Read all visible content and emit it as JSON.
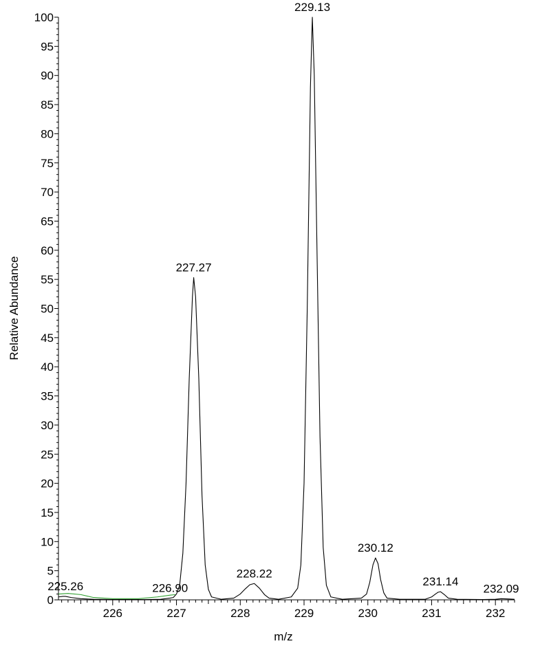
{
  "chart_data": {
    "type": "line",
    "xlabel": "m/z",
    "ylabel": "Relative Abundance",
    "xlim": [
      225.15,
      232.3
    ],
    "ylim": [
      0,
      100
    ],
    "x_ticks": [
      226,
      227,
      228,
      229,
      230,
      231,
      232
    ],
    "y_ticks": [
      0,
      5,
      10,
      15,
      20,
      25,
      30,
      35,
      40,
      45,
      50,
      55,
      60,
      65,
      70,
      75,
      80,
      85,
      90,
      95,
      100
    ],
    "grid": false,
    "colors": {
      "spectrum": "#000000",
      "baseline_trace": "#2e9e2e"
    },
    "peaks": [
      {
        "label": "225.26",
        "mz": 225.26,
        "abundance": 0.6,
        "width": 0.05
      },
      {
        "label": "226.90",
        "mz": 226.9,
        "abundance": 0.3,
        "width": 0.05
      },
      {
        "label": "227.27",
        "mz": 227.27,
        "abundance": 55.3,
        "width": 0.085
      },
      {
        "label": "228.22",
        "mz": 228.22,
        "abundance": 2.8,
        "width": 0.1
      },
      {
        "label": "229.13",
        "mz": 229.13,
        "abundance": 100,
        "width": 0.085
      },
      {
        "label": "230.12",
        "mz": 230.12,
        "abundance": 7.2,
        "width": 0.07
      },
      {
        "label": "231.14",
        "mz": 231.14,
        "abundance": 1.4,
        "width": 0.07
      },
      {
        "label": "232.09",
        "mz": 232.09,
        "abundance": 0.2,
        "width": 0.07
      }
    ],
    "series": [
      {
        "color": "#000000",
        "points": [
          [
            225.15,
            0.5
          ],
          [
            225.22,
            0.6
          ],
          [
            225.26,
            0.6
          ],
          [
            225.35,
            0.4
          ],
          [
            225.5,
            0.2
          ],
          [
            225.7,
            0.1
          ],
          [
            226.0,
            0.05
          ],
          [
            226.5,
            0.05
          ],
          [
            226.75,
            0.1
          ],
          [
            226.9,
            0.3
          ],
          [
            226.95,
            0.4
          ],
          [
            227.0,
            1.0
          ],
          [
            227.05,
            2.5
          ],
          [
            227.1,
            8.0
          ],
          [
            227.15,
            20.0
          ],
          [
            227.2,
            38.0
          ],
          [
            227.25,
            52.0
          ],
          [
            227.27,
            55.3
          ],
          [
            227.3,
            52.0
          ],
          [
            227.35,
            38.0
          ],
          [
            227.4,
            18.0
          ],
          [
            227.45,
            6.0
          ],
          [
            227.5,
            1.8
          ],
          [
            227.55,
            0.5
          ],
          [
            227.7,
            0.1
          ],
          [
            227.9,
            0.3
          ],
          [
            228.0,
            1.0
          ],
          [
            228.08,
            1.9
          ],
          [
            228.15,
            2.6
          ],
          [
            228.22,
            2.8
          ],
          [
            228.3,
            2.0
          ],
          [
            228.38,
            0.9
          ],
          [
            228.45,
            0.3
          ],
          [
            228.6,
            0.1
          ],
          [
            228.8,
            0.5
          ],
          [
            228.9,
            2.0
          ],
          [
            228.95,
            6.0
          ],
          [
            229.0,
            20.0
          ],
          [
            229.05,
            50.0
          ],
          [
            229.1,
            88.0
          ],
          [
            229.13,
            100.0
          ],
          [
            229.16,
            90.0
          ],
          [
            229.2,
            62.0
          ],
          [
            229.25,
            28.0
          ],
          [
            229.3,
            9.0
          ],
          [
            229.35,
            2.5
          ],
          [
            229.42,
            0.5
          ],
          [
            229.6,
            0.1
          ],
          [
            229.9,
            0.3
          ],
          [
            229.98,
            1.0
          ],
          [
            230.03,
            3.0
          ],
          [
            230.08,
            6.0
          ],
          [
            230.12,
            7.2
          ],
          [
            230.16,
            6.2
          ],
          [
            230.2,
            3.5
          ],
          [
            230.25,
            1.2
          ],
          [
            230.3,
            0.3
          ],
          [
            230.5,
            0.1
          ],
          [
            230.9,
            0.1
          ],
          [
            231.0,
            0.5
          ],
          [
            231.06,
            1.0
          ],
          [
            231.1,
            1.3
          ],
          [
            231.14,
            1.4
          ],
          [
            231.2,
            0.9
          ],
          [
            231.26,
            0.3
          ],
          [
            231.4,
            0.1
          ],
          [
            231.8,
            0.05
          ],
          [
            232.0,
            0.1
          ],
          [
            232.09,
            0.2
          ],
          [
            232.2,
            0.15
          ],
          [
            232.3,
            0.1
          ]
        ]
      },
      {
        "color": "#2e9e2e",
        "points": [
          [
            225.15,
            1.0
          ],
          [
            225.3,
            1.1
          ],
          [
            225.5,
            0.9
          ],
          [
            225.7,
            0.4
          ],
          [
            226.0,
            0.2
          ],
          [
            226.4,
            0.2
          ],
          [
            226.7,
            0.5
          ],
          [
            226.9,
            0.8
          ],
          [
            226.98,
            0.9
          ]
        ]
      }
    ]
  }
}
